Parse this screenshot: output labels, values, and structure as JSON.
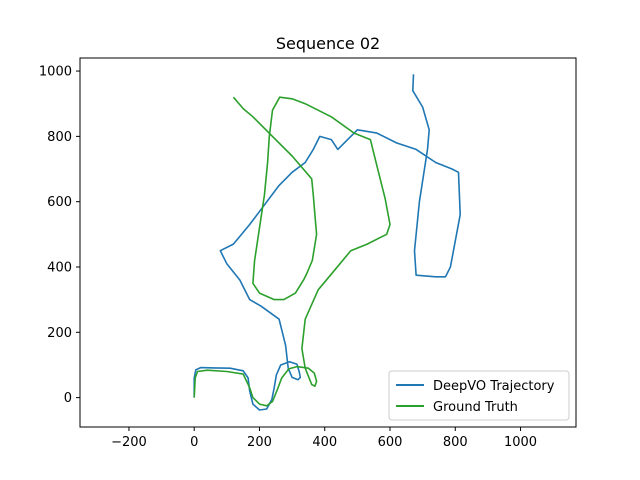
{
  "chart_data": {
    "type": "line",
    "title": "Sequence 02",
    "xlabel": "",
    "ylabel": "",
    "xlim": [
      -350,
      1170
    ],
    "ylim": [
      -90,
      1040
    ],
    "xticks": [
      -200,
      0,
      200,
      400,
      600,
      800,
      1000
    ],
    "yticks": [
      0,
      200,
      400,
      600,
      800,
      1000
    ],
    "xtick_labels": [
      "−200",
      "0",
      "200",
      "400",
      "600",
      "800",
      "1000"
    ],
    "ytick_labels": [
      "0",
      "200",
      "400",
      "600",
      "800",
      "1000"
    ],
    "grid": false,
    "legend_position": "lower-right",
    "series": [
      {
        "name": "DeepVO Trajectory",
        "color": "#1f77b4",
        "points": [
          [
            0,
            0
          ],
          [
            0,
            60
          ],
          [
            5,
            85
          ],
          [
            20,
            92
          ],
          [
            60,
            91
          ],
          [
            110,
            90
          ],
          [
            150,
            82
          ],
          [
            165,
            60
          ],
          [
            170,
            20
          ],
          [
            180,
            -20
          ],
          [
            200,
            -38
          ],
          [
            222,
            -35
          ],
          [
            238,
            -5
          ],
          [
            245,
            30
          ],
          [
            252,
            70
          ],
          [
            265,
            100
          ],
          [
            292,
            110
          ],
          [
            315,
            102
          ],
          [
            322,
            78
          ],
          [
            325,
            62
          ],
          [
            318,
            55
          ],
          [
            300,
            62
          ],
          [
            288,
            90
          ],
          [
            280,
            160
          ],
          [
            260,
            240
          ],
          [
            205,
            280
          ],
          [
            170,
            300
          ],
          [
            140,
            360
          ],
          [
            100,
            410
          ],
          [
            80,
            450
          ],
          [
            120,
            470
          ],
          [
            170,
            530
          ],
          [
            260,
            650
          ],
          [
            300,
            690
          ],
          [
            340,
            720
          ],
          [
            365,
            760
          ],
          [
            385,
            800
          ],
          [
            420,
            790
          ],
          [
            440,
            760
          ],
          [
            460,
            780
          ],
          [
            500,
            820
          ],
          [
            560,
            810
          ],
          [
            620,
            780
          ],
          [
            680,
            760
          ],
          [
            740,
            720
          ],
          [
            790,
            700
          ],
          [
            810,
            690
          ],
          [
            815,
            560
          ],
          [
            800,
            480
          ],
          [
            785,
            400
          ],
          [
            770,
            370
          ],
          [
            740,
            370
          ],
          [
            680,
            375
          ],
          [
            675,
            450
          ],
          [
            690,
            600
          ],
          [
            715,
            760
          ],
          [
            720,
            820
          ],
          [
            700,
            890
          ],
          [
            670,
            940
          ],
          [
            672,
            990
          ]
        ]
      },
      {
        "name": "Ground Truth",
        "color": "#2ca02c",
        "points": [
          [
            0,
            0
          ],
          [
            3,
            60
          ],
          [
            10,
            80
          ],
          [
            40,
            84
          ],
          [
            100,
            80
          ],
          [
            150,
            72
          ],
          [
            170,
            30
          ],
          [
            180,
            0
          ],
          [
            200,
            -20
          ],
          [
            222,
            -25
          ],
          [
            240,
            -12
          ],
          [
            255,
            25
          ],
          [
            268,
            60
          ],
          [
            290,
            88
          ],
          [
            315,
            95
          ],
          [
            350,
            90
          ],
          [
            368,
            75
          ],
          [
            375,
            50
          ],
          [
            370,
            35
          ],
          [
            360,
            40
          ],
          [
            340,
            90
          ],
          [
            330,
            150
          ],
          [
            340,
            240
          ],
          [
            380,
            330
          ],
          [
            430,
            390
          ],
          [
            480,
            450
          ],
          [
            530,
            470
          ],
          [
            590,
            500
          ],
          [
            600,
            530
          ],
          [
            585,
            610
          ],
          [
            560,
            710
          ],
          [
            540,
            790
          ],
          [
            490,
            810
          ],
          [
            420,
            860
          ],
          [
            340,
            900
          ],
          [
            300,
            915
          ],
          [
            262,
            920
          ],
          [
            240,
            880
          ],
          [
            230,
            800
          ],
          [
            225,
            720
          ],
          [
            215,
            620
          ],
          [
            200,
            520
          ],
          [
            185,
            420
          ],
          [
            180,
            350
          ],
          [
            200,
            320
          ],
          [
            245,
            300
          ],
          [
            275,
            300
          ],
          [
            310,
            320
          ],
          [
            335,
            360
          ],
          [
            345,
            380
          ],
          [
            362,
            420
          ],
          [
            375,
            500
          ],
          [
            370,
            560
          ],
          [
            365,
            620
          ],
          [
            360,
            670
          ],
          [
            300,
            740
          ],
          [
            240,
            800
          ],
          [
            180,
            860
          ],
          [
            150,
            885
          ],
          [
            120,
            920
          ]
        ]
      }
    ]
  }
}
